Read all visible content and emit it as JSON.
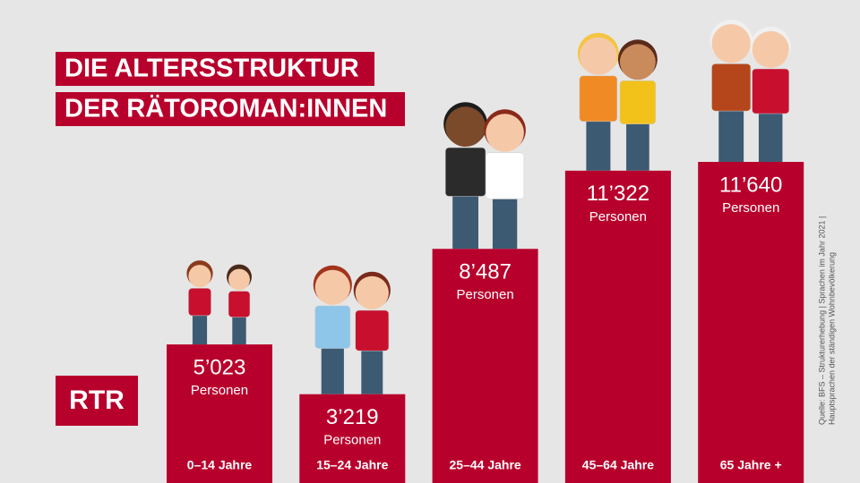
{
  "chart_data": {
    "type": "bar",
    "title": [
      "DIE ALTERSSTRUKTUR",
      "DER RÄTOROMAN:INNEN"
    ],
    "logo": "RTR",
    "categories": [
      "0–14 Jahre",
      "15–24 Jahre",
      "25–44 Jahre",
      "45–64 Jahre",
      "65 Jahre +"
    ],
    "values": [
      5023,
      3219,
      8487,
      11322,
      11640
    ],
    "value_labels": [
      "5’023",
      "3’219",
      "8’487",
      "11’322",
      "11’640"
    ],
    "unit": "Personen",
    "color": "#b8002c",
    "source": [
      "Quelle: BFS – Strukturerhebung | Sprachen im Jahr 2021 |",
      "Hauptsprachen der ständigen Wohnbevölkerung"
    ]
  }
}
